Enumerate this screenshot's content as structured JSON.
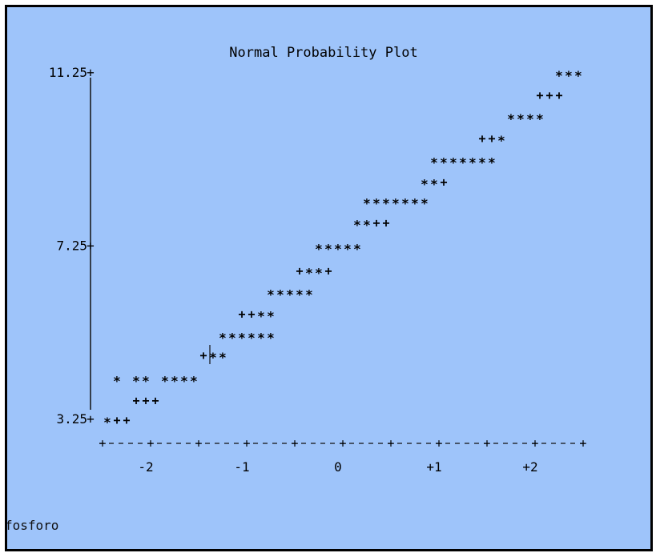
{
  "chart_data": {
    "type": "scatter",
    "title": "Normal Probability Plot",
    "xlabel": "",
    "ylabel": "",
    "y_ticks": [
      "11.25",
      "7.25",
      "3.25"
    ],
    "y_tick_values": [
      11.25,
      7.25,
      3.25
    ],
    "x_ticks": [
      "-2",
      "-1",
      "0",
      "+1",
      "+2"
    ],
    "x_tick_values": [
      -2,
      -1,
      0,
      1,
      2
    ],
    "xlim": [
      -2.5,
      2.5
    ],
    "ylim": [
      3.25,
      11.25
    ],
    "grid": false,
    "series": [
      {
        "marker": "*",
        "points": [
          [
            -2.4,
            3.25
          ],
          [
            -2.3,
            4.2
          ],
          [
            -2.1,
            4.2
          ],
          [
            -2.0,
            4.2
          ],
          [
            -1.8,
            4.2
          ],
          [
            -1.7,
            4.2
          ],
          [
            -1.6,
            4.2
          ],
          [
            -1.5,
            4.2
          ],
          [
            -1.3,
            4.75
          ],
          [
            -1.2,
            4.75
          ],
          [
            -1.2,
            5.2
          ],
          [
            -1.1,
            5.2
          ],
          [
            -1.0,
            5.2
          ],
          [
            -0.9,
            5.2
          ],
          [
            -0.8,
            5.2
          ],
          [
            -0.7,
            5.2
          ],
          [
            -0.8,
            5.7
          ],
          [
            -0.7,
            5.7
          ],
          [
            -0.7,
            6.2
          ],
          [
            -0.6,
            6.2
          ],
          [
            -0.5,
            6.2
          ],
          [
            -0.4,
            6.2
          ],
          [
            -0.3,
            6.2
          ],
          [
            -0.3,
            6.7
          ],
          [
            -0.2,
            6.7
          ],
          [
            -0.2,
            7.25
          ],
          [
            -0.1,
            7.25
          ],
          [
            0.0,
            7.25
          ],
          [
            0.1,
            7.25
          ],
          [
            0.2,
            7.25
          ],
          [
            0.2,
            7.8
          ],
          [
            0.3,
            7.8
          ],
          [
            0.3,
            8.3
          ],
          [
            0.4,
            8.3
          ],
          [
            0.5,
            8.3
          ],
          [
            0.6,
            8.3
          ],
          [
            0.7,
            8.3
          ],
          [
            0.8,
            8.3
          ],
          [
            0.9,
            8.3
          ],
          [
            0.9,
            8.75
          ],
          [
            1.0,
            8.75
          ],
          [
            1.0,
            9.25
          ],
          [
            1.1,
            9.25
          ],
          [
            1.2,
            9.25
          ],
          [
            1.3,
            9.25
          ],
          [
            1.4,
            9.25
          ],
          [
            1.5,
            9.25
          ],
          [
            1.6,
            9.25
          ],
          [
            1.7,
            9.75
          ],
          [
            1.8,
            10.25
          ],
          [
            1.9,
            10.25
          ],
          [
            2.0,
            10.25
          ],
          [
            2.1,
            10.25
          ],
          [
            2.3,
            11.25
          ],
          [
            2.4,
            11.25
          ],
          [
            2.5,
            11.25
          ]
        ]
      },
      {
        "marker": "+",
        "points": [
          [
            -2.3,
            3.25
          ],
          [
            -2.2,
            3.25
          ],
          [
            -2.1,
            3.7
          ],
          [
            -2.0,
            3.7
          ],
          [
            -1.9,
            3.7
          ],
          [
            -1.4,
            4.75
          ],
          [
            -1.0,
            5.7
          ],
          [
            -0.9,
            5.7
          ],
          [
            -0.4,
            6.7
          ],
          [
            -0.1,
            6.7
          ],
          [
            0.4,
            7.8
          ],
          [
            0.5,
            7.8
          ],
          [
            1.1,
            8.75
          ],
          [
            1.5,
            9.75
          ],
          [
            1.6,
            9.75
          ],
          [
            2.1,
            10.75
          ],
          [
            2.2,
            10.75
          ],
          [
            2.3,
            10.75
          ]
        ]
      }
    ],
    "variable_label": "fosforo"
  }
}
